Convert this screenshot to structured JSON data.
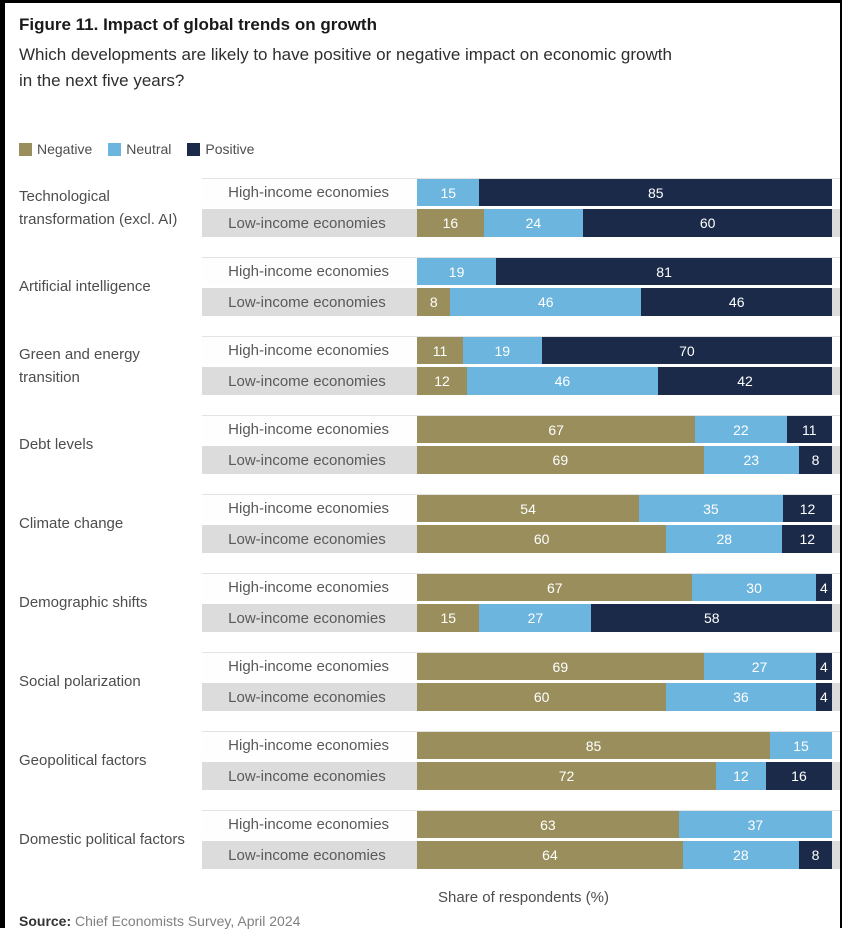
{
  "title": "Figure 11. Impact of global trends on growth",
  "subtitle_line1": "Which developments are likely to have positive or negative impact on economic growth",
  "subtitle_line2": "in the next five years?",
  "legend": [
    {
      "label": "Negative",
      "color": "#9a8f5c"
    },
    {
      "label": "Neutral",
      "color": "#6cb5de"
    },
    {
      "label": "Positive",
      "color": "#1a2a48"
    }
  ],
  "colors": {
    "series": [
      "#9a8f5c",
      "#6cb5de",
      "#1a2a48"
    ],
    "low_income_band": "#dcdcdc",
    "high_income_band": "#fefefe",
    "frame_border": "#000000"
  },
  "axis_label": "Share of respondents (%)",
  "source_label": "Source:",
  "source_text": "Chief Economists Survey, April 2024",
  "chart_data": {
    "type": "bar",
    "stacked": true,
    "orientation": "horizontal",
    "unit": "percent",
    "xlim": [
      0,
      100
    ],
    "series_names": [
      "Negative",
      "Neutral",
      "Positive"
    ],
    "row_labels": [
      "High-income economies",
      "Low-income economies"
    ],
    "categories": [
      "Technological transformation (excl. AI)",
      "Artificial intelligence",
      "Green and energy transition",
      "Debt levels",
      "Climate change",
      "Demographic shifts",
      "Social polarization",
      "Geopolitical factors",
      "Domestic political factors"
    ],
    "groups": [
      {
        "category": "Technological transformation (excl. AI)",
        "rows": [
          {
            "label": "High-income economies",
            "values": [
              0,
              15,
              85
            ]
          },
          {
            "label": "Low-income economies",
            "values": [
              16,
              24,
              60
            ]
          }
        ]
      },
      {
        "category": "Artificial intelligence",
        "rows": [
          {
            "label": "High-income economies",
            "values": [
              0,
              19,
              81
            ]
          },
          {
            "label": "Low-income economies",
            "values": [
              8,
              46,
              46
            ]
          }
        ]
      },
      {
        "category": "Green and energy transition",
        "rows": [
          {
            "label": "High-income economies",
            "values": [
              11,
              19,
              70
            ]
          },
          {
            "label": "Low-income economies",
            "values": [
              12,
              46,
              42
            ]
          }
        ]
      },
      {
        "category": "Debt levels",
        "rows": [
          {
            "label": "High-income economies",
            "values": [
              67,
              22,
              11
            ]
          },
          {
            "label": "Low-income economies",
            "values": [
              69,
              23,
              8
            ]
          }
        ]
      },
      {
        "category": "Climate change",
        "rows": [
          {
            "label": "High-income economies",
            "values": [
              54,
              35,
              12
            ]
          },
          {
            "label": "Low-income economies",
            "values": [
              60,
              28,
              12
            ]
          }
        ]
      },
      {
        "category": "Demographic shifts",
        "rows": [
          {
            "label": "High-income economies",
            "values": [
              67,
              30,
              4
            ]
          },
          {
            "label": "Low-income economies",
            "values": [
              15,
              27,
              58
            ]
          }
        ]
      },
      {
        "category": "Social polarization",
        "rows": [
          {
            "label": "High-income economies",
            "values": [
              69,
              27,
              4
            ]
          },
          {
            "label": "Low-income economies",
            "values": [
              60,
              36,
              4
            ]
          }
        ]
      },
      {
        "category": "Geopolitical factors",
        "rows": [
          {
            "label": "High-income economies",
            "values": [
              85,
              15,
              0
            ]
          },
          {
            "label": "Low-income economies",
            "values": [
              72,
              12,
              16
            ]
          }
        ]
      },
      {
        "category": "Domestic political factors",
        "rows": [
          {
            "label": "High-income economies",
            "values": [
              63,
              37,
              0
            ]
          },
          {
            "label": "Low-income economies",
            "values": [
              64,
              28,
              8
            ]
          }
        ]
      }
    ]
  }
}
